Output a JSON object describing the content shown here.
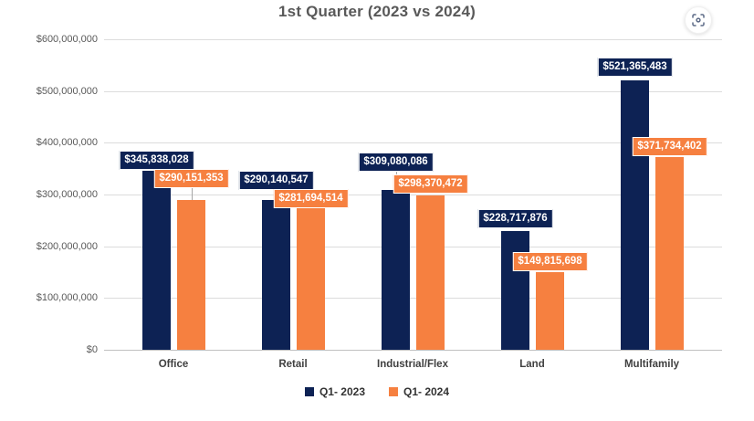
{
  "header": {
    "fit_view_icon": "scan-focus-icon"
  },
  "chart_data": {
    "type": "bar",
    "title": "1st Quarter (2023 vs 2024)",
    "categories": [
      "Office",
      "Retail",
      "Industrial/Flex",
      "Land",
      "Multifamily"
    ],
    "series": [
      {
        "name": "Q1- 2023",
        "color": "#0d2254",
        "values": [
          345838028,
          290140547,
          309080086,
          228717876,
          521365483
        ],
        "labels": [
          "$345,838,028",
          "$290,140,547",
          "$309,080,086",
          "$228,717,876",
          "$521,365,483"
        ]
      },
      {
        "name": "Q1- 2024",
        "color": "#f68040",
        "values": [
          290151353,
          281694514,
          298370472,
          149815698,
          371734402
        ],
        "labels": [
          "$290,151,353",
          "$281,694,514",
          "$298,370,472",
          "$149,815,698",
          "$371,734,402"
        ]
      }
    ],
    "xlabel": "",
    "ylabel": "",
    "ylim": [
      0,
      600000000
    ],
    "yticks": [
      "$0",
      "$100,000,000",
      "$200,000,000",
      "$300,000,000",
      "$400,000,000",
      "$500,000,000",
      "$600,000,000"
    ],
    "grid": true,
    "legend_position": "bottom"
  }
}
